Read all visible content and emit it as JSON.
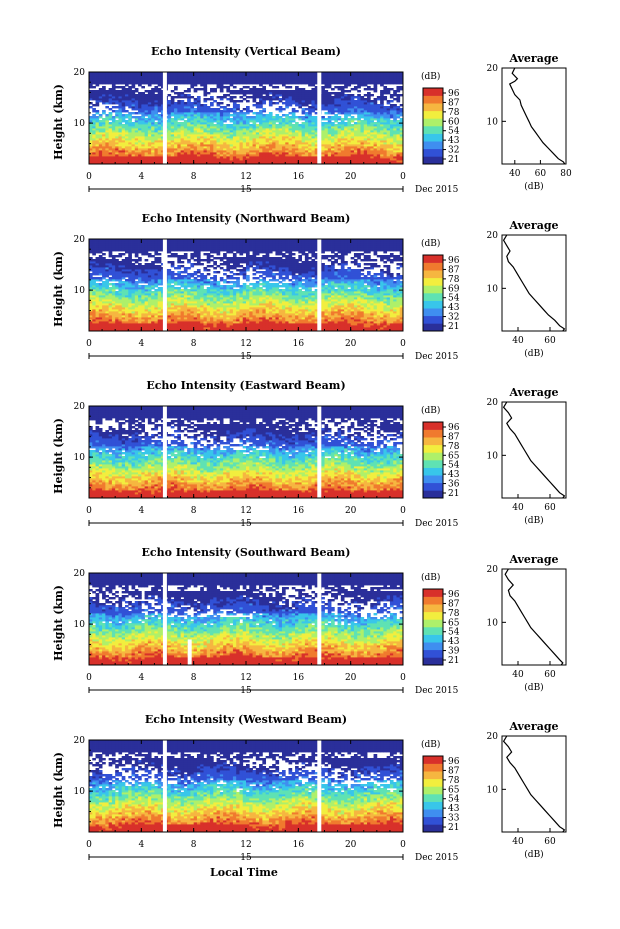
{
  "figure": {
    "xlabel_bottom": "Local Time",
    "date_label": "Dec 2015",
    "day_label": "15",
    "colorbar_unit": "(dB)",
    "colorbar_ticks": [
      "96",
      "87",
      "78",
      "60",
      "54",
      "43",
      "32",
      "21"
    ],
    "colormap": [
      "#2a2f9a",
      "#3151d6",
      "#3f8ef0",
      "#38c6ea",
      "#5fe2b3",
      "#aef06a",
      "#f2ee3e",
      "#f6b640",
      "#f07a2e",
      "#d8302a"
    ],
    "gap_color": "#ffffff"
  },
  "chart_data": [
    {
      "type": "heatmap",
      "title": "Echo Intensity (Vertical Beam)",
      "ylabel": "Height (km)",
      "xlim": [
        0,
        24
      ],
      "ylim": [
        2,
        20
      ],
      "xticks": [
        "0",
        "4",
        "8",
        "12",
        "16",
        "20",
        "0"
      ],
      "yticks": [
        "20",
        "10"
      ],
      "colorbar": {
        "unit": "(dB)",
        "ticks": [
          "96",
          "87",
          "78",
          "60",
          "54",
          "43",
          "32",
          "21"
        ]
      },
      "data_gaps_hours": [
        5.8,
        17.6
      ],
      "average_profile": {
        "title": "Average",
        "xlabel": "(dB)",
        "xlim": [
          30,
          80
        ],
        "xticks": [
          "40",
          "60",
          "80"
        ],
        "yticks": [
          "20",
          "10"
        ],
        "points": [
          [
            40,
            20
          ],
          [
            38,
            19
          ],
          [
            42,
            18
          ],
          [
            40,
            17.5
          ],
          [
            36,
            17
          ],
          [
            38,
            16
          ],
          [
            40,
            15
          ],
          [
            44,
            14
          ],
          [
            45,
            13
          ],
          [
            47,
            12
          ],
          [
            49,
            11
          ],
          [
            51,
            10
          ],
          [
            53,
            9
          ],
          [
            56,
            8
          ],
          [
            59,
            7
          ],
          [
            62,
            6
          ],
          [
            66,
            5
          ],
          [
            70,
            4
          ],
          [
            74,
            3
          ],
          [
            78,
            2.4
          ],
          [
            79,
            2
          ]
        ]
      }
    },
    {
      "type": "heatmap",
      "title": "Echo Intensity (Northward Beam)",
      "ylabel": "Height (km)",
      "xlim": [
        0,
        24
      ],
      "ylim": [
        2,
        20
      ],
      "xticks": [
        "0",
        "4",
        "8",
        "12",
        "16",
        "20",
        "0"
      ],
      "yticks": [
        "20",
        "10"
      ],
      "colorbar": {
        "unit": "(dB)",
        "ticks": [
          "96",
          "87",
          "78",
          "69",
          "54",
          "43",
          "32",
          "21"
        ]
      },
      "data_gaps_hours": [
        5.8,
        17.6
      ],
      "average_profile": {
        "title": "Average",
        "xlabel": "(dB)",
        "xlim": [
          30,
          70
        ],
        "xticks": [
          "40",
          "60"
        ],
        "yticks": [
          "20",
          "10"
        ],
        "points": [
          [
            33,
            20
          ],
          [
            31,
            19
          ],
          [
            33,
            18
          ],
          [
            35,
            17
          ],
          [
            33,
            16
          ],
          [
            34,
            15
          ],
          [
            37,
            14
          ],
          [
            39,
            13
          ],
          [
            41,
            12
          ],
          [
            43,
            11
          ],
          [
            45,
            10
          ],
          [
            47,
            9
          ],
          [
            50,
            8
          ],
          [
            53,
            7
          ],
          [
            56,
            6
          ],
          [
            59,
            5
          ],
          [
            63,
            4
          ],
          [
            66,
            3
          ],
          [
            69,
            2.4
          ],
          [
            68,
            2
          ]
        ]
      }
    },
    {
      "type": "heatmap",
      "title": "Echo Intensity (Eastward Beam)",
      "ylabel": "Height (km)",
      "xlim": [
        0,
        24
      ],
      "ylim": [
        2,
        20
      ],
      "xticks": [
        "0",
        "4",
        "8",
        "12",
        "16",
        "20",
        "0"
      ],
      "yticks": [
        "20",
        "10"
      ],
      "colorbar": {
        "unit": "(dB)",
        "ticks": [
          "96",
          "87",
          "78",
          "65",
          "54",
          "43",
          "36",
          "21"
        ]
      },
      "data_gaps_hours": [
        5.8,
        17.6
      ],
      "average_profile": {
        "title": "Average",
        "xlabel": "(dB)",
        "xlim": [
          30,
          70
        ],
        "xticks": [
          "40",
          "60"
        ],
        "yticks": [
          "20",
          "10"
        ],
        "points": [
          [
            33,
            20
          ],
          [
            31,
            19
          ],
          [
            34,
            18
          ],
          [
            36,
            17
          ],
          [
            33,
            16
          ],
          [
            35,
            15
          ],
          [
            38,
            14
          ],
          [
            40,
            13
          ],
          [
            42,
            12
          ],
          [
            44,
            11
          ],
          [
            46,
            10
          ],
          [
            48,
            9
          ],
          [
            51,
            8
          ],
          [
            54,
            7
          ],
          [
            57,
            6
          ],
          [
            60,
            5
          ],
          [
            63,
            4
          ],
          [
            66,
            3
          ],
          [
            69,
            2.4
          ],
          [
            68,
            2
          ]
        ]
      }
    },
    {
      "type": "heatmap",
      "title": "Echo Intensity (Southward Beam)",
      "ylabel": "Height (km)",
      "xlim": [
        0,
        24
      ],
      "ylim": [
        2,
        20
      ],
      "xticks": [
        "0",
        "4",
        "8",
        "12",
        "16",
        "20",
        "0"
      ],
      "yticks": [
        "20",
        "10"
      ],
      "colorbar": {
        "unit": "(dB)",
        "ticks": [
          "96",
          "87",
          "78",
          "65",
          "54",
          "43",
          "39",
          "21"
        ]
      },
      "data_gaps_hours": [
        5.8,
        7.7,
        17.6
      ],
      "average_profile": {
        "title": "Average",
        "xlabel": "(dB)",
        "xlim": [
          30,
          70
        ],
        "xticks": [
          "40",
          "60"
        ],
        "yticks": [
          "20",
          "10"
        ],
        "points": [
          [
            34,
            20
          ],
          [
            32,
            19
          ],
          [
            34,
            18
          ],
          [
            37,
            17
          ],
          [
            34,
            16
          ],
          [
            35,
            15
          ],
          [
            38,
            14
          ],
          [
            40,
            13
          ],
          [
            42,
            12
          ],
          [
            44,
            11
          ],
          [
            46,
            10
          ],
          [
            48,
            9
          ],
          [
            51,
            8
          ],
          [
            54,
            7
          ],
          [
            57,
            6
          ],
          [
            60,
            5
          ],
          [
            63,
            4
          ],
          [
            66,
            3
          ],
          [
            68,
            2.4
          ],
          [
            67,
            2
          ]
        ]
      }
    },
    {
      "type": "heatmap",
      "title": "Echo Intensity (Westward Beam)",
      "ylabel": "Height (km)",
      "xlim": [
        0,
        24
      ],
      "ylim": [
        2,
        20
      ],
      "xticks": [
        "0",
        "4",
        "8",
        "12",
        "16",
        "20",
        "0"
      ],
      "yticks": [
        "20",
        "10"
      ],
      "colorbar": {
        "unit": "(dB)",
        "ticks": [
          "96",
          "87",
          "78",
          "65",
          "54",
          "43",
          "33",
          "21"
        ]
      },
      "data_gaps_hours": [
        5.8,
        17.6
      ],
      "average_profile": {
        "title": "Average",
        "xlabel": "(dB)",
        "xlim": [
          30,
          70
        ],
        "xticks": [
          "40",
          "60"
        ],
        "yticks": [
          "20",
          "10"
        ],
        "points": [
          [
            33,
            20
          ],
          [
            31,
            19
          ],
          [
            34,
            18
          ],
          [
            36,
            17
          ],
          [
            33,
            16
          ],
          [
            35,
            15
          ],
          [
            38,
            14
          ],
          [
            40,
            13
          ],
          [
            42,
            12
          ],
          [
            44,
            11
          ],
          [
            46,
            10
          ],
          [
            48,
            9
          ],
          [
            51,
            8
          ],
          [
            54,
            7
          ],
          [
            57,
            6
          ],
          [
            60,
            5
          ],
          [
            63,
            4
          ],
          [
            66,
            3
          ],
          [
            69,
            2.4
          ],
          [
            68,
            2
          ]
        ]
      }
    }
  ]
}
